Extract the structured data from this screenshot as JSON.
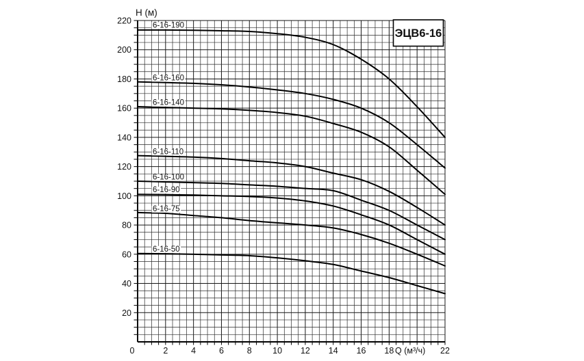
{
  "chart_data": {
    "type": "line",
    "title": "ЭЦВ6-16",
    "xlabel": "Q (м³/ч)",
    "ylabel": "H (м)",
    "xlim": [
      0,
      22
    ],
    "ylim": [
      0,
      220
    ],
    "x_major_step": 2,
    "x_minor_step": 0.5,
    "y_major_step": 20,
    "y_minor_step": 5,
    "grid": "fine square grid, minor and major lines, black on white",
    "legend_position": "inline labels above each curve at left side",
    "x_tick_labels": [
      "0",
      "2",
      "4",
      "6",
      "8",
      "10",
      "12",
      "14",
      "16",
      "18",
      "Q (м³/ч)",
      "22"
    ],
    "y_tick_labels": [
      "20",
      "40",
      "60",
      "80",
      "100",
      "120",
      "140",
      "160",
      "180",
      "200",
      "220"
    ],
    "x": [
      0,
      2,
      4,
      6,
      8,
      10,
      12,
      14,
      16,
      18,
      20,
      22
    ],
    "series": [
      {
        "name": "6-16-190",
        "values": [
          213.5,
          213.5,
          213.3,
          213.0,
          212.5,
          211.0,
          208.5,
          203.5,
          193.5,
          180.0,
          161.0,
          140.0
        ]
      },
      {
        "name": "6-16-160",
        "values": [
          178.0,
          177.5,
          177.0,
          176.0,
          174.5,
          172.5,
          170.0,
          166.0,
          160.0,
          150.0,
          135.0,
          119.0
        ]
      },
      {
        "name": "6-16-140",
        "values": [
          161.0,
          160.5,
          160.0,
          159.5,
          158.5,
          157.0,
          154.5,
          149.5,
          143.5,
          133.5,
          117.5,
          101.0
        ]
      },
      {
        "name": "6-16-110",
        "values": [
          127.5,
          127.0,
          126.5,
          125.5,
          124.0,
          122.5,
          120.0,
          115.5,
          111.0,
          103.0,
          92.0,
          80.0
        ]
      },
      {
        "name": "6-16-100",
        "values": [
          110.0,
          109.5,
          109.0,
          108.5,
          107.5,
          106.5,
          105.0,
          103.5,
          97.0,
          90.0,
          80.0,
          70.0
        ]
      },
      {
        "name": "6-16-90",
        "values": [
          101.0,
          100.8,
          100.5,
          100.0,
          99.5,
          98.5,
          96.5,
          93.0,
          87.0,
          80.0,
          70.0,
          60.0
        ]
      },
      {
        "name": "6-16-75",
        "values": [
          88.5,
          88.0,
          86.5,
          85.0,
          83.0,
          81.5,
          80.0,
          78.0,
          73.5,
          67.5,
          60.0,
          52.0
        ]
      },
      {
        "name": "6-16-50",
        "values": [
          60.5,
          60.3,
          60.0,
          59.5,
          59.0,
          57.5,
          55.5,
          53.0,
          48.5,
          44.0,
          38.5,
          33.0
        ]
      }
    ],
    "colors": {
      "curve": "#000000",
      "grid_minor": "#2a2a2a",
      "grid_major": "#161616",
      "axis": "#000000",
      "background": "#ffffff",
      "text": "#111111"
    }
  }
}
